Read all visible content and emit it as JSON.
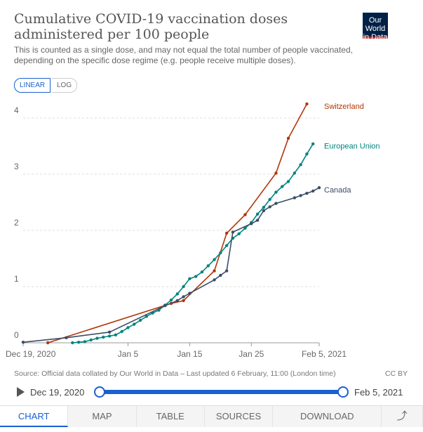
{
  "chart_data": {
    "type": "line",
    "title": "Cumulative COVID-19 vaccination doses administered per 100 people",
    "subtitle": "This is counted as a single dose, and may not equal the total number of people vaccinated, depending on the specific dose regime (e.g. people receive multiple doses).",
    "logo": "Our World in Data",
    "scale_buttons": [
      "LINEAR",
      "LOG"
    ],
    "xlim": [
      "2020-12-19",
      "2021-02-05"
    ],
    "xticks": [
      {
        "value": "2020-12-19",
        "label": "Dec 19, 2020"
      },
      {
        "value": "2021-01-05",
        "label": "Jan 5"
      },
      {
        "value": "2021-01-15",
        "label": "Jan 15"
      },
      {
        "value": "2021-01-25",
        "label": "Jan 25"
      },
      {
        "value": "2021-02-05",
        "label": "Feb 5, 2021"
      }
    ],
    "ylim": [
      0,
      4.3
    ],
    "yticks": [
      0,
      1,
      2,
      3,
      4
    ],
    "grid": true,
    "series": [
      {
        "name": "Switzerland",
        "color": "#b13507",
        "x": [
          "2020-12-23",
          "2021-01-12",
          "2021-01-14",
          "2021-01-19",
          "2021-01-21",
          "2021-01-24",
          "2021-01-29",
          "2021-01-31",
          "2021-02-03"
        ],
        "values": [
          0,
          0.7,
          0.75,
          1.28,
          1.95,
          2.28,
          3.02,
          3.64,
          4.25
        ]
      },
      {
        "name": "European Union",
        "color": "#00847e",
        "x": [
          "2020-12-27",
          "2020-12-28",
          "2020-12-29",
          "2020-12-30",
          "2020-12-31",
          "2021-01-01",
          "2021-01-02",
          "2021-01-03",
          "2021-01-04",
          "2021-01-05",
          "2021-01-06",
          "2021-01-07",
          "2021-01-08",
          "2021-01-09",
          "2021-01-10",
          "2021-01-11",
          "2021-01-12",
          "2021-01-13",
          "2021-01-14",
          "2021-01-15",
          "2021-01-16",
          "2021-01-17",
          "2021-01-18",
          "2021-01-19",
          "2021-01-20",
          "2021-01-21",
          "2021-01-22",
          "2021-01-23",
          "2021-01-24",
          "2021-01-25",
          "2021-01-26",
          "2021-01-27",
          "2021-01-28",
          "2021-01-29",
          "2021-01-30",
          "2021-01-31",
          "2021-02-01",
          "2021-02-02",
          "2021-02-03",
          "2021-02-04"
        ],
        "values": [
          0,
          0.01,
          0.02,
          0.05,
          0.08,
          0.1,
          0.12,
          0.14,
          0.2,
          0.27,
          0.33,
          0.4,
          0.47,
          0.53,
          0.58,
          0.67,
          0.76,
          0.87,
          1.0,
          1.14,
          1.18,
          1.26,
          1.37,
          1.48,
          1.6,
          1.73,
          1.86,
          1.94,
          2.04,
          2.14,
          2.29,
          2.41,
          2.55,
          2.68,
          2.78,
          2.87,
          3.02,
          3.17,
          3.36,
          3.54
        ]
      },
      {
        "name": "Canada",
        "color": "#3c4e66",
        "x": [
          "2020-12-19",
          "2020-12-26",
          "2021-01-02",
          "2021-01-11",
          "2021-01-13",
          "2021-01-14",
          "2021-01-15",
          "2021-01-19",
          "2021-01-20",
          "2021-01-21",
          "2021-01-22",
          "2021-01-25",
          "2021-01-26",
          "2021-01-27",
          "2021-01-28",
          "2021-01-29",
          "2021-02-01",
          "2021-02-02",
          "2021-02-03",
          "2021-02-04",
          "2021-02-05"
        ],
        "values": [
          0.01,
          0.09,
          0.19,
          0.66,
          0.75,
          0.82,
          0.88,
          1.12,
          1.2,
          1.28,
          1.97,
          2.12,
          2.18,
          2.35,
          2.42,
          2.48,
          2.58,
          2.62,
          2.66,
          2.7,
          2.76
        ]
      }
    ],
    "source": "Source: Official data collated by Our World in Data – Last updated 6 February, 11:00 (London time)",
    "license": "CC BY",
    "timeline": {
      "start": "Dec 19, 2020",
      "end": "Feb 5, 2021"
    },
    "tabs": [
      "CHART",
      "MAP",
      "TABLE",
      "SOURCES",
      "DOWNLOAD"
    ]
  }
}
